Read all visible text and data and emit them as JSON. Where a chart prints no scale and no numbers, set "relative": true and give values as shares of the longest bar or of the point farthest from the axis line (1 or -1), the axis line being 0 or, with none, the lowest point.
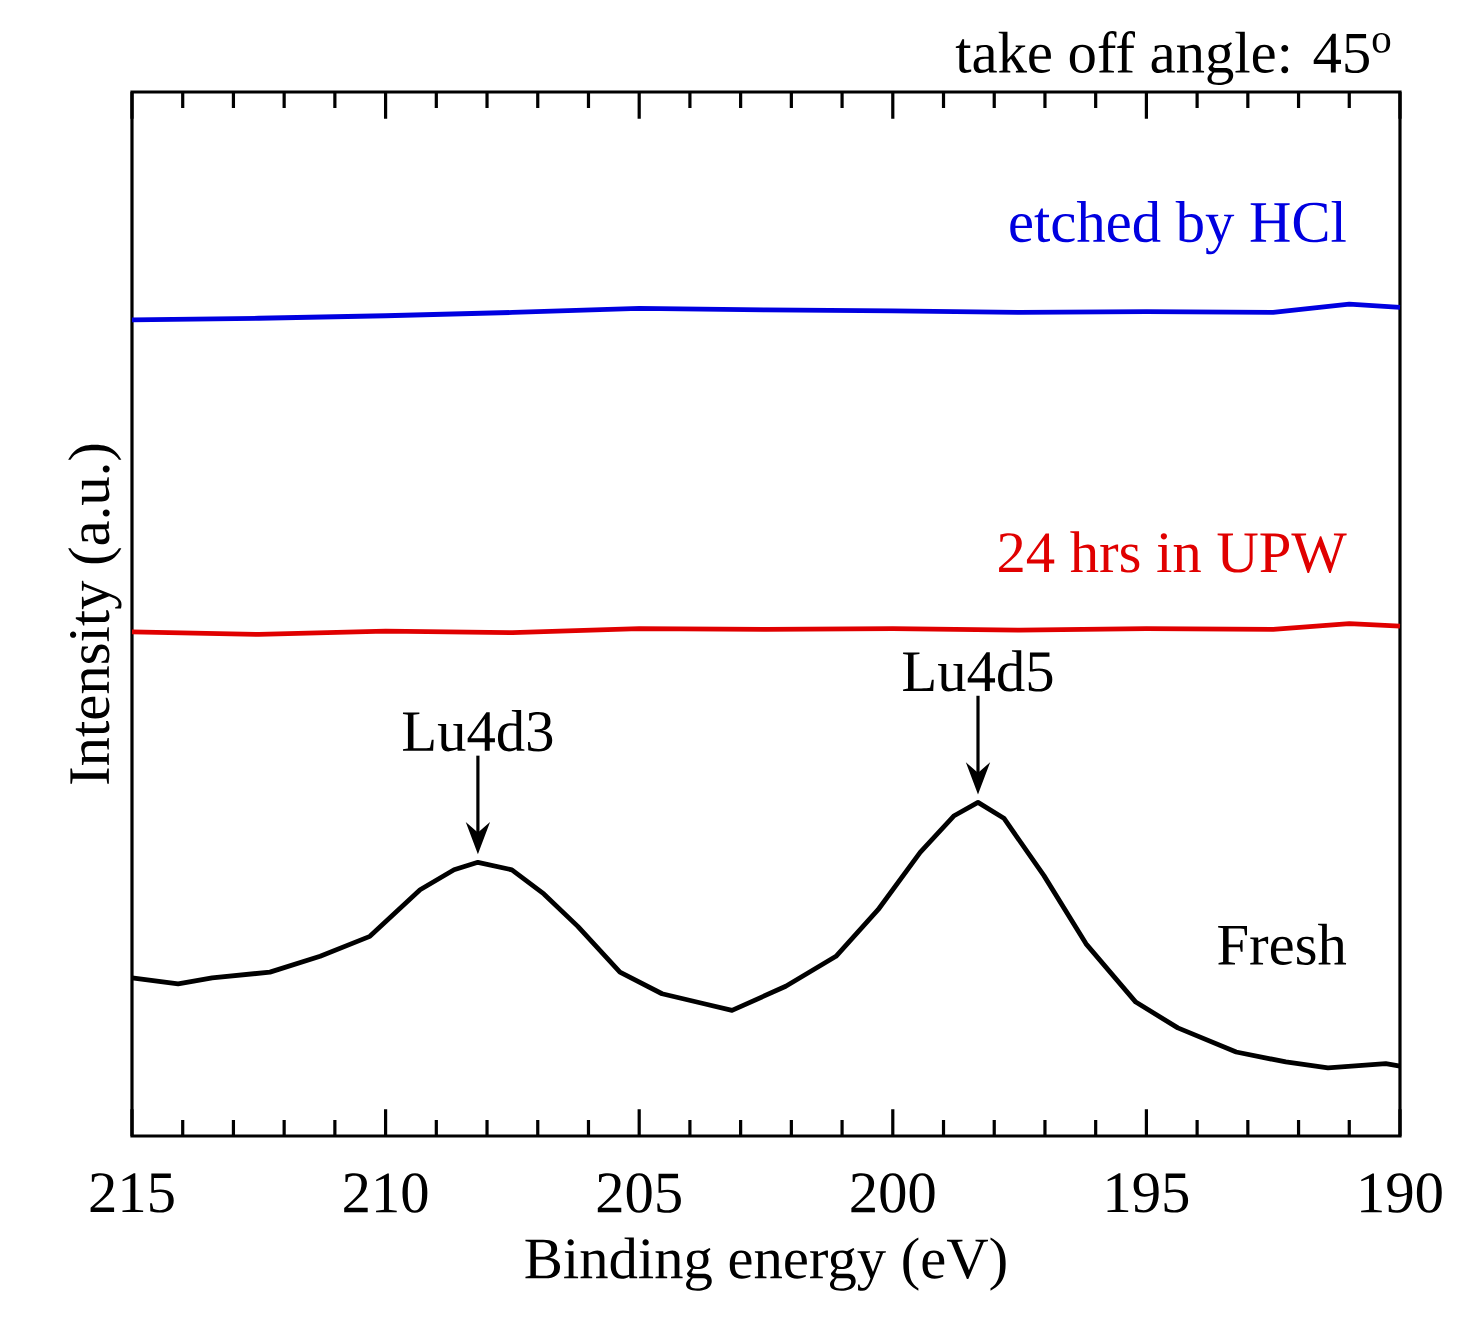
{
  "chart_data": {
    "type": "line",
    "title": "take off angle: 45$^{o}$",
    "xlabel": "Binding energy (eV)",
    "ylabel": "Intensity (a.u.)",
    "relative": true,
    "legend": false,
    "grid": false,
    "marker": "none",
    "line_style": "solid",
    "xlim": [
      215,
      190
    ],
    "xticks": [
      215,
      210,
      205,
      200,
      195,
      190
    ],
    "annotations": [
      {
        "text": "Lu4d3",
        "x": 208.18,
        "y": 0.329
      },
      {
        "text": "Lu4d5",
        "x": 198.32,
        "y": 0.401
      }
    ],
    "series": [
      {
        "name": "Fresh",
        "color": "#000000",
        "x": [
          215.0,
          214.09,
          213.42,
          212.28,
          211.29,
          210.31,
          209.32,
          208.65,
          208.18,
          207.51,
          206.88,
          206.21,
          205.38,
          204.55,
          203.72,
          203.17,
          202.11,
          201.12,
          200.29,
          199.46,
          198.79,
          198.32,
          197.81,
          197.02,
          196.19,
          195.21,
          194.38,
          193.23,
          192.25,
          191.42,
          190.28,
          190.0
        ],
        "values": [
          0.19,
          0.183,
          0.19,
          0.197,
          0.216,
          0.24,
          0.296,
          0.32,
          0.329,
          0.32,
          0.291,
          0.252,
          0.197,
          0.171,
          0.159,
          0.151,
          0.18,
          0.216,
          0.272,
          0.341,
          0.385,
          0.401,
          0.382,
          0.313,
          0.231,
          0.161,
          0.13,
          0.101,
          0.089,
          0.082,
          0.087,
          0.084
        ]
      },
      {
        "name": "24 hrs in UPW",
        "color": "#e00000",
        "x": [
          215,
          212.5,
          210,
          207.5,
          205,
          202.5,
          200,
          197.5,
          195,
          192.5,
          191,
          190
        ],
        "values": [
          0.606,
          0.603,
          0.607,
          0.605,
          0.61,
          0.609,
          0.61,
          0.608,
          0.61,
          0.609,
          0.616,
          0.613
        ]
      },
      {
        "name": "etched by HCl",
        "color": "#0000e0",
        "x": [
          215,
          212.5,
          210,
          207.5,
          205,
          202.5,
          200,
          197.5,
          195,
          192.5,
          191,
          190
        ],
        "values": [
          0.981,
          0.983,
          0.986,
          0.99,
          0.995,
          0.993,
          0.992,
          0.99,
          0.991,
          0.99,
          1.0,
          0.996
        ]
      }
    ]
  }
}
